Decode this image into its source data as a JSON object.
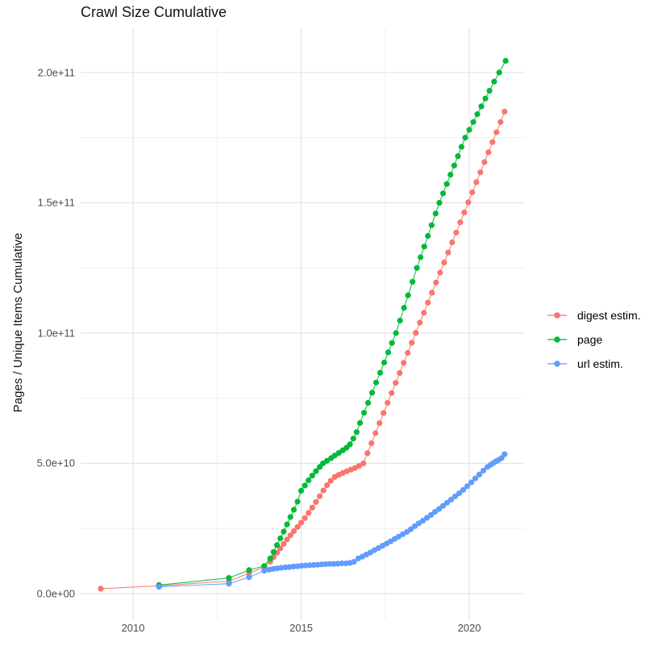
{
  "chart_data": {
    "type": "scatter",
    "title": "Crawl Size Cumulative",
    "xlabel": "",
    "ylabel": "Pages / Unique Items Cumulative",
    "legend_position": "right",
    "grid": true,
    "background": "#ffffff",
    "grid_major_color": "#e3e3e3",
    "grid_minor_color": "#f0f0f0",
    "xlim": [
      2008.44,
      2021.63
    ],
    "ylim": [
      -9900000000.0,
      217000000000.0
    ],
    "x_ticks": {
      "values": [
        2010,
        2015,
        2020
      ],
      "labels": [
        "2010",
        "2015",
        "2020"
      ]
    },
    "x_minor_ticks": [
      2012.5,
      2017.5
    ],
    "y_ticks": {
      "values": [
        0,
        50000000000.0,
        100000000000.0,
        150000000000.0,
        200000000000.0
      ],
      "labels": [
        "0.0e+00",
        "5.0e+10",
        "1.0e+11",
        "1.5e+11",
        "2.0e+11"
      ]
    },
    "y_minor_ticks": [
      25000000000.0,
      75000000000.0,
      125000000000.0,
      175000000000.0
    ],
    "point_radius": 3.6,
    "series": [
      {
        "name": "digest estim.",
        "color": "#F8766D",
        "points": [
          [
            2009.04,
            1900000000.0
          ],
          [
            2010.77,
            3000000000.0
          ],
          [
            2012.85,
            4800000000.0
          ],
          [
            2013.45,
            7800000000.0
          ],
          [
            2013.9,
            10200000000.0
          ],
          [
            2014.08,
            12300000000.0
          ],
          [
            2014.18,
            14000000000.0
          ],
          [
            2014.28,
            15700000000.0
          ],
          [
            2014.38,
            17400000000.0
          ],
          [
            2014.48,
            19100000000.0
          ],
          [
            2014.58,
            20800000000.0
          ],
          [
            2014.68,
            22400000000.0
          ],
          [
            2014.78,
            24000000000.0
          ],
          [
            2014.89,
            25600000000.0
          ],
          [
            2015.0,
            27200000000.0
          ],
          [
            2015.11,
            29000000000.0
          ],
          [
            2015.22,
            31000000000.0
          ],
          [
            2015.33,
            33000000000.0
          ],
          [
            2015.44,
            35200000000.0
          ],
          [
            2015.55,
            37400000000.0
          ],
          [
            2015.66,
            39600000000.0
          ],
          [
            2015.77,
            41600000000.0
          ],
          [
            2015.88,
            43300000000.0
          ],
          [
            2016.0,
            44800000000.0
          ],
          [
            2016.12,
            45600000000.0
          ],
          [
            2016.24,
            46300000000.0
          ],
          [
            2016.36,
            47000000000.0
          ],
          [
            2016.48,
            47600000000.0
          ],
          [
            2016.6,
            48200000000.0
          ],
          [
            2016.72,
            49000000000.0
          ],
          [
            2016.85,
            50000000000.0
          ],
          [
            2016.97,
            53900000000.0
          ],
          [
            2017.09,
            57700000000.0
          ],
          [
            2017.21,
            61600000000.0
          ],
          [
            2017.33,
            65400000000.0
          ],
          [
            2017.45,
            69300000000.0
          ],
          [
            2017.57,
            73200000000.0
          ],
          [
            2017.69,
            77000000000.0
          ],
          [
            2017.81,
            80900000000.0
          ],
          [
            2017.93,
            84700000000.0
          ],
          [
            2018.05,
            88600000000.0
          ],
          [
            2018.17,
            92400000000.0
          ],
          [
            2018.29,
            96300000000.0
          ],
          [
            2018.41,
            100100000000.0
          ],
          [
            2018.53,
            104000000000.0
          ],
          [
            2018.65,
            107800000000.0
          ],
          [
            2018.77,
            111700000000.0
          ],
          [
            2018.89,
            115500000000.0
          ],
          [
            2019.01,
            119400000000.0
          ],
          [
            2019.13,
            123200000000.0
          ],
          [
            2019.25,
            127100000000.0
          ],
          [
            2019.37,
            130900000000.0
          ],
          [
            2019.49,
            134800000000.0
          ],
          [
            2019.61,
            138600000000.0
          ],
          [
            2019.73,
            142500000000.0
          ],
          [
            2019.85,
            146300000000.0
          ],
          [
            2019.97,
            150200000000.0
          ],
          [
            2020.09,
            154000000000.0
          ],
          [
            2020.21,
            157900000000.0
          ],
          [
            2020.33,
            161700000000.0
          ],
          [
            2020.45,
            165600000000.0
          ],
          [
            2020.57,
            169400000000.0
          ],
          [
            2020.69,
            173300000000.0
          ],
          [
            2020.81,
            177100000000.0
          ],
          [
            2020.93,
            181000000000.0
          ],
          [
            2021.05,
            185000000000.0
          ]
        ]
      },
      {
        "name": "page",
        "color": "#00BA38",
        "points": [
          [
            2010.77,
            3300000000.0
          ],
          [
            2012.85,
            6000000000.0
          ],
          [
            2013.45,
            9000000000.0
          ],
          [
            2013.9,
            10600000000.0
          ],
          [
            2014.08,
            13500000000.0
          ],
          [
            2014.18,
            16000000000.0
          ],
          [
            2014.28,
            18600000000.0
          ],
          [
            2014.38,
            21200000000.0
          ],
          [
            2014.48,
            23800000000.0
          ],
          [
            2014.58,
            26600000000.0
          ],
          [
            2014.68,
            29400000000.0
          ],
          [
            2014.78,
            32200000000.0
          ],
          [
            2014.89,
            35300000000.0
          ],
          [
            2015.0,
            39500000000.0
          ],
          [
            2015.11,
            41500000000.0
          ],
          [
            2015.22,
            43500000000.0
          ],
          [
            2015.33,
            45300000000.0
          ],
          [
            2015.44,
            47000000000.0
          ],
          [
            2015.55,
            48600000000.0
          ],
          [
            2015.65,
            50000000000.0
          ],
          [
            2015.77,
            51000000000.0
          ],
          [
            2015.89,
            52000000000.0
          ],
          [
            2016.0,
            53000000000.0
          ],
          [
            2016.12,
            54000000000.0
          ],
          [
            2016.24,
            55000000000.0
          ],
          [
            2016.35,
            56000000000.0
          ],
          [
            2016.45,
            57300000000.0
          ],
          [
            2016.55,
            59500000000.0
          ],
          [
            2016.65,
            62000000000.0
          ],
          [
            2016.75,
            65500000000.0
          ],
          [
            2016.87,
            69400000000.0
          ],
          [
            2016.99,
            73200000000.0
          ],
          [
            2017.11,
            77100000000.0
          ],
          [
            2017.23,
            81000000000.0
          ],
          [
            2017.35,
            84800000000.0
          ],
          [
            2017.47,
            88700000000.0
          ],
          [
            2017.59,
            92600000000.0
          ],
          [
            2017.7,
            96200000000.0
          ],
          [
            2017.82,
            100000000000.0
          ],
          [
            2017.94,
            104800000000.0
          ],
          [
            2018.06,
            109700000000.0
          ],
          [
            2018.18,
            114500000000.0
          ],
          [
            2018.31,
            119700000000.0
          ],
          [
            2018.44,
            125000000000.0
          ],
          [
            2018.55,
            129100000000.0
          ],
          [
            2018.66,
            133200000000.0
          ],
          [
            2018.77,
            137300000000.0
          ],
          [
            2018.88,
            141400000000.0
          ],
          [
            2019.0,
            145900000000.0
          ],
          [
            2019.11,
            150000000000.0
          ],
          [
            2019.22,
            153600000000.0
          ],
          [
            2019.33,
            157200000000.0
          ],
          [
            2019.44,
            160800000000.0
          ],
          [
            2019.55,
            164300000000.0
          ],
          [
            2019.66,
            167900000000.0
          ],
          [
            2019.77,
            171500000000.0
          ],
          [
            2019.88,
            175000000000.0
          ],
          [
            2020.0,
            178000000000.0
          ],
          [
            2020.12,
            181000000000.0
          ],
          [
            2020.24,
            184000000000.0
          ],
          [
            2020.36,
            187000000000.0
          ],
          [
            2020.48,
            190000000000.0
          ],
          [
            2020.6,
            193000000000.0
          ],
          [
            2020.74,
            196500000000.0
          ],
          [
            2020.89,
            200000000000.0
          ],
          [
            2021.08,
            204500000000.0
          ]
        ]
      },
      {
        "name": "url estim.",
        "color": "#619CFF",
        "points": [
          [
            2010.77,
            2600000000.0
          ],
          [
            2012.85,
            3800000000.0
          ],
          [
            2013.45,
            6300000000.0
          ],
          [
            2013.9,
            8800000000.0
          ],
          [
            2014.05,
            9200000000.0
          ],
          [
            2014.17,
            9500000000.0
          ],
          [
            2014.29,
            9700000000.0
          ],
          [
            2014.41,
            9900000000.0
          ],
          [
            2014.53,
            10100000000.0
          ],
          [
            2014.65,
            10200000000.0
          ],
          [
            2014.77,
            10400000000.0
          ],
          [
            2014.89,
            10500000000.0
          ],
          [
            2015.01,
            10700000000.0
          ],
          [
            2015.13,
            10800000000.0
          ],
          [
            2015.25,
            10900000000.0
          ],
          [
            2015.37,
            11000000000.0
          ],
          [
            2015.49,
            11100000000.0
          ],
          [
            2015.61,
            11200000000.0
          ],
          [
            2015.73,
            11300000000.0
          ],
          [
            2015.85,
            11400000000.0
          ],
          [
            2015.97,
            11400000000.0
          ],
          [
            2016.09,
            11500000000.0
          ],
          [
            2016.21,
            11600000000.0
          ],
          [
            2016.33,
            11600000000.0
          ],
          [
            2016.45,
            11800000000.0
          ],
          [
            2016.57,
            12200000000.0
          ],
          [
            2016.7,
            13500000000.0
          ],
          [
            2016.82,
            14200000000.0
          ],
          [
            2016.94,
            15000000000.0
          ],
          [
            2017.06,
            15800000000.0
          ],
          [
            2017.18,
            16700000000.0
          ],
          [
            2017.3,
            17500000000.0
          ],
          [
            2017.42,
            18400000000.0
          ],
          [
            2017.54,
            19200000000.0
          ],
          [
            2017.66,
            20100000000.0
          ],
          [
            2017.78,
            21000000000.0
          ],
          [
            2017.9,
            21900000000.0
          ],
          [
            2018.02,
            22800000000.0
          ],
          [
            2018.14,
            23700000000.0
          ],
          [
            2018.26,
            24700000000.0
          ],
          [
            2018.38,
            25900000000.0
          ],
          [
            2018.5,
            27000000000.0
          ],
          [
            2018.62,
            28000000000.0
          ],
          [
            2018.74,
            29100000000.0
          ],
          [
            2018.86,
            30200000000.0
          ],
          [
            2018.98,
            31400000000.0
          ],
          [
            2019.1,
            32500000000.0
          ],
          [
            2019.22,
            33700000000.0
          ],
          [
            2019.34,
            34900000000.0
          ],
          [
            2019.46,
            36100000000.0
          ],
          [
            2019.58,
            37300000000.0
          ],
          [
            2019.7,
            38500000000.0
          ],
          [
            2019.82,
            39800000000.0
          ],
          [
            2019.94,
            41200000000.0
          ],
          [
            2020.06,
            42700000000.0
          ],
          [
            2020.18,
            44200000000.0
          ],
          [
            2020.3,
            45700000000.0
          ],
          [
            2020.42,
            47200000000.0
          ],
          [
            2020.54,
            48600000000.0
          ],
          [
            2020.64,
            49500000000.0
          ],
          [
            2020.72,
            50200000000.0
          ],
          [
            2020.8,
            50800000000.0
          ],
          [
            2020.88,
            51400000000.0
          ],
          [
            2020.96,
            52000000000.0
          ],
          [
            2021.05,
            53500000000.0
          ]
        ]
      }
    ]
  }
}
